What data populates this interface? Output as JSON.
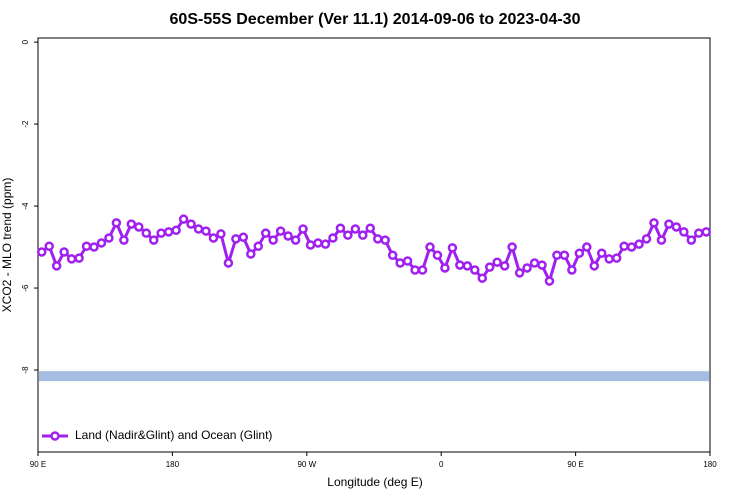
{
  "chart_data": {
    "type": "line",
    "title": "60S-55S December (Ver 11.1)   2014-09-06 to 2023-04-30",
    "x_label": "Longitude (deg E)",
    "y_label": "XCO2 - MLO trend (ppm)",
    "xlim": [
      90,
      540
    ],
    "xticks": [
      {
        "value": 90,
        "label": "90 E"
      },
      {
        "value": 180,
        "label": "180"
      },
      {
        "value": 270,
        "label": "90 W"
      },
      {
        "value": 360,
        "label": "0"
      },
      {
        "value": 450,
        "label": "90 E"
      },
      {
        "value": 540,
        "label": "180"
      }
    ],
    "ylim": [
      -10,
      0.1
    ],
    "yticks": [
      0,
      -2,
      -4,
      -6,
      -8
    ],
    "band": {
      "value": -8.15,
      "color": "#a4bde0"
    },
    "legend": "bottom-left",
    "x": [
      92.5,
      97.5,
      102.5,
      107.5,
      112.5,
      117.5,
      122.5,
      127.5,
      132.5,
      137.5,
      142.5,
      147.5,
      152.5,
      157.5,
      162.5,
      167.5,
      172.5,
      177.5,
      182.5,
      187.5,
      192.5,
      197.5,
      202.5,
      207.5,
      212.5,
      217.5,
      222.5,
      227.5,
      232.5,
      237.5,
      242.5,
      247.5,
      252.5,
      257.5,
      262.5,
      267.5,
      272.5,
      277.5,
      282.5,
      287.5,
      292.5,
      297.5,
      302.5,
      307.5,
      312.5,
      317.5,
      322.5,
      327.5,
      332.5,
      337.5,
      342.5,
      347.5,
      352.5,
      357.5,
      362.5,
      367.5,
      372.5,
      377.5,
      382.5,
      387.5,
      392.5,
      397.5,
      402.5,
      407.5,
      412.5,
      417.5,
      422.5,
      427.5,
      432.5,
      437.5,
      442.5,
      447.5,
      452.5,
      457.5,
      462.5,
      467.5,
      472.5,
      477.5,
      482.5,
      487.5,
      492.5,
      497.5,
      502.5,
      507.5,
      512.5,
      517.5,
      522.5,
      527.5,
      532.5,
      537.5
    ],
    "series": [
      {
        "name": "Land (Nadir&Glint) and Ocean (Glint)",
        "color": "#a020f0",
        "values": [
          -5.12,
          -4.98,
          -5.46,
          -5.12,
          -5.29,
          -5.27,
          -4.98,
          -5.0,
          -4.9,
          -4.78,
          -4.41,
          -4.83,
          -4.44,
          -4.51,
          -4.66,
          -4.83,
          -4.66,
          -4.63,
          -4.59,
          -4.32,
          -4.44,
          -4.56,
          -4.61,
          -4.78,
          -4.68,
          -5.39,
          -4.8,
          -4.76,
          -5.17,
          -4.98,
          -4.66,
          -4.83,
          -4.61,
          -4.73,
          -4.83,
          -4.56,
          -4.95,
          -4.9,
          -4.93,
          -4.78,
          -4.54,
          -4.71,
          -4.56,
          -4.71,
          -4.54,
          -4.8,
          -4.83,
          -5.2,
          -5.39,
          -5.34,
          -5.56,
          -5.56,
          -5.0,
          -5.2,
          -5.51,
          -5.02,
          -5.44,
          -5.46,
          -5.56,
          -5.76,
          -5.49,
          -5.37,
          -5.46,
          -5.0,
          -5.63,
          -5.51,
          -5.39,
          -5.44,
          -5.83,
          -5.2,
          -5.2,
          -5.56,
          -5.15,
          -5.0,
          -5.46,
          -5.15,
          -5.29,
          -5.27,
          -4.98,
          -5.0,
          -4.93,
          -4.8,
          -4.41,
          -4.83,
          -4.44,
          -4.51,
          -4.63,
          -4.83,
          -4.66,
          -4.63
        ]
      }
    ]
  }
}
